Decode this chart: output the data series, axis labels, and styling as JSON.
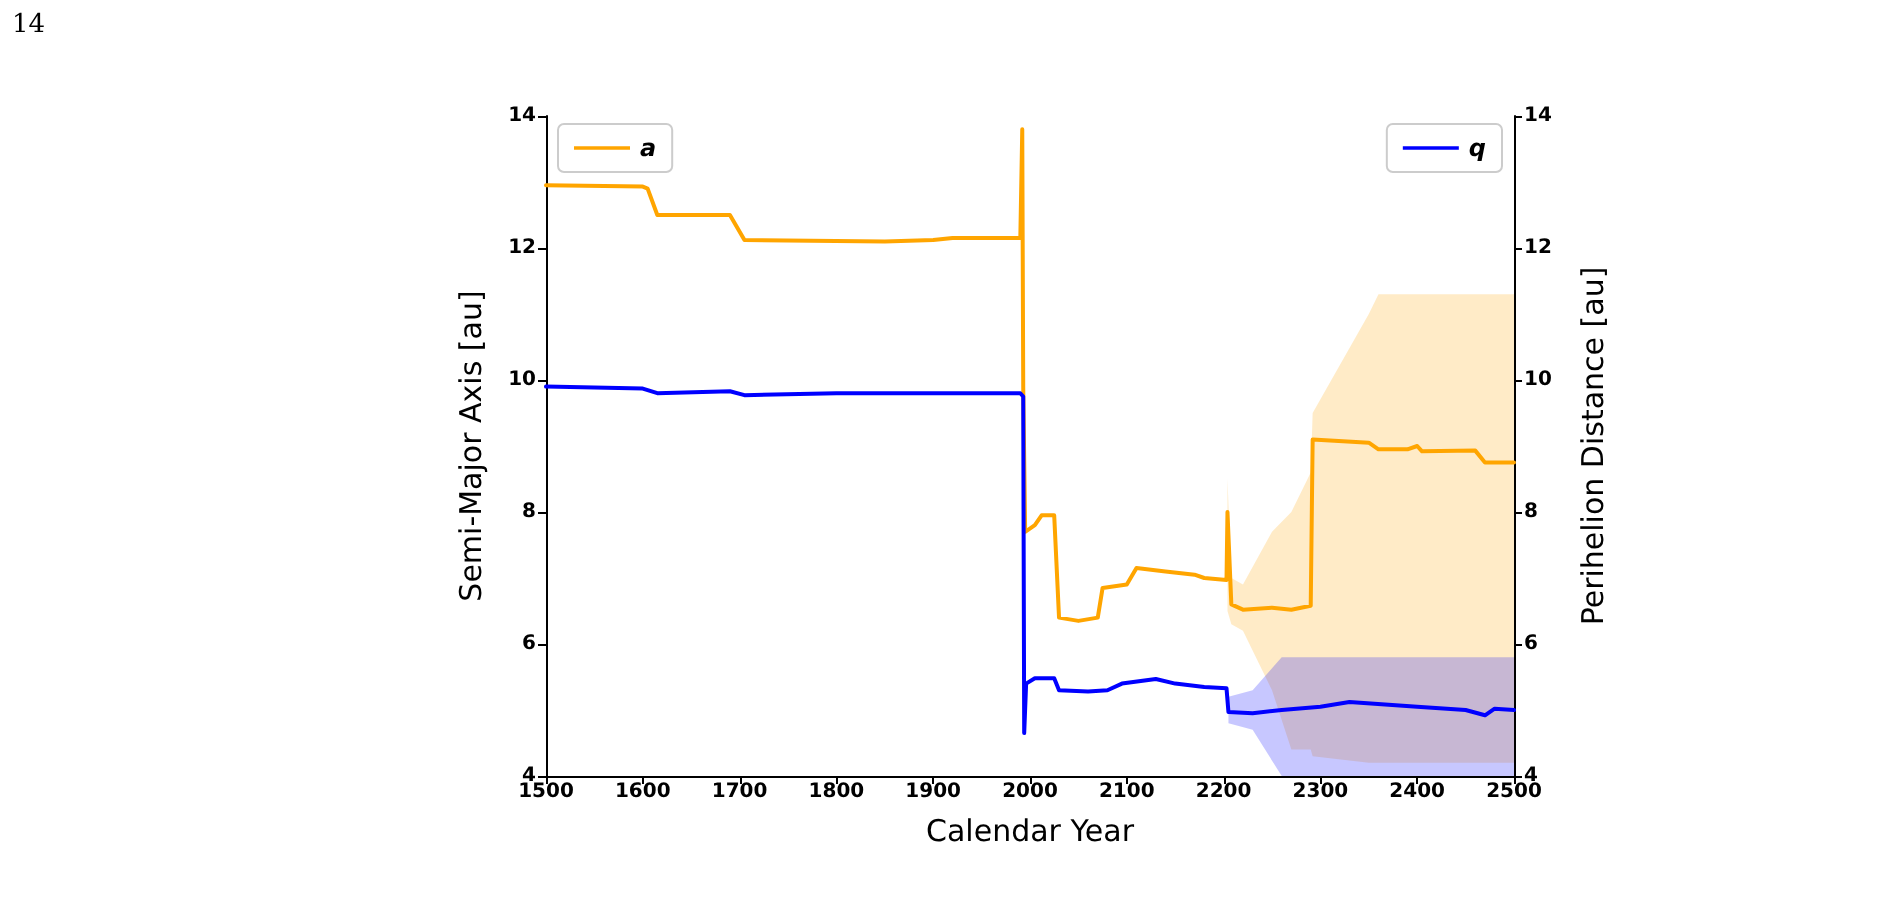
{
  "chart_data": {
    "type": "line",
    "xlabel": "Calendar Year",
    "ylabel": "Semi-Major Axis [au]",
    "y2label": "Perihelion Distance [au]",
    "annotations": [
      "14"
    ],
    "xlim": [
      1500,
      2500
    ],
    "xticks": [
      1500,
      1600,
      1700,
      1800,
      1900,
      2000,
      2100,
      2200,
      2300,
      2400,
      2500
    ],
    "ylim": [
      4,
      14
    ],
    "yticks": [
      4,
      6,
      8,
      10,
      12,
      14
    ],
    "y2lim": [
      4,
      14
    ],
    "y2ticks": [
      4,
      6,
      8,
      10,
      12,
      14
    ],
    "legend": "top left",
    "grid": false,
    "marker": "none",
    "line_style": "solid",
    "series": [
      {
        "name": "a",
        "color": "#ffa500",
        "x": [
          1500,
          1600,
          1605,
          1615,
          1690,
          1705,
          1850,
          1900,
          1920,
          1990,
          1992,
          1993,
          1995,
          2005,
          2012,
          2025,
          2030,
          2050,
          2070,
          2075,
          2100,
          2110,
          2140,
          2170,
          2180,
          2203,
          2204,
          2208,
          2220,
          2250,
          2270,
          2290,
          2292,
          2350,
          2360,
          2390,
          2400,
          2405,
          2460,
          2470,
          2500
        ],
        "values": [
          12.95,
          12.93,
          12.9,
          12.5,
          12.5,
          12.12,
          12.1,
          12.12,
          12.15,
          12.15,
          13.8,
          9.9,
          7.7,
          7.8,
          7.95,
          7.95,
          6.4,
          6.35,
          6.4,
          6.85,
          6.9,
          7.15,
          7.1,
          7.05,
          7.0,
          6.97,
          8.0,
          6.6,
          6.52,
          6.55,
          6.52,
          6.58,
          9.1,
          9.05,
          8.95,
          8.95,
          9.0,
          8.92,
          8.93,
          8.75,
          8.75
        ],
        "lower": [
          null,
          null,
          null,
          null,
          null,
          null,
          null,
          null,
          null,
          null,
          null,
          null,
          null,
          null,
          null,
          null,
          null,
          null,
          null,
          null,
          null,
          null,
          null,
          null,
          null,
          null,
          6.5,
          6.3,
          6.2,
          5.3,
          4.4,
          4.4,
          4.3,
          4.2,
          4.2,
          4.2,
          4.2,
          4.2,
          4.2,
          4.2,
          4.2
        ],
        "upper": [
          null,
          null,
          null,
          null,
          null,
          null,
          null,
          null,
          null,
          null,
          null,
          null,
          null,
          null,
          null,
          null,
          null,
          null,
          null,
          null,
          null,
          null,
          null,
          null,
          null,
          null,
          8.5,
          7.0,
          6.9,
          7.7,
          8.0,
          8.6,
          9.5,
          11.0,
          11.3,
          11.3,
          11.3,
          11.3,
          11.3,
          11.3,
          11.3
        ]
      },
      {
        "name": "q",
        "color": "#0000ff",
        "axis": "y2",
        "x": [
          1500,
          1600,
          1615,
          1690,
          1705,
          1800,
          1990,
          1993,
          1994,
          1996,
          2005,
          2025,
          2030,
          2060,
          2080,
          2095,
          2130,
          2150,
          2180,
          2203,
          2205,
          2230,
          2260,
          2300,
          2330,
          2400,
          2450,
          2470,
          2480,
          2500
        ],
        "values": [
          9.9,
          9.87,
          9.8,
          9.83,
          9.77,
          9.8,
          9.8,
          9.75,
          4.65,
          5.4,
          5.48,
          5.48,
          5.3,
          5.28,
          5.3,
          5.4,
          5.47,
          5.4,
          5.35,
          5.33,
          4.97,
          4.95,
          5.0,
          5.05,
          5.12,
          5.05,
          5.0,
          4.92,
          5.02,
          5.0
        ],
        "lower": [
          null,
          null,
          null,
          null,
          null,
          null,
          null,
          null,
          null,
          null,
          null,
          null,
          null,
          null,
          null,
          null,
          null,
          null,
          null,
          null,
          4.8,
          4.7,
          4.0,
          4.0,
          4.0,
          4.0,
          4.0,
          4.0,
          4.0,
          4.0
        ],
        "upper": [
          null,
          null,
          null,
          null,
          null,
          null,
          null,
          null,
          null,
          null,
          null,
          null,
          null,
          null,
          null,
          null,
          null,
          null,
          null,
          null,
          5.2,
          5.3,
          5.8,
          5.8,
          5.8,
          5.8,
          5.8,
          5.8,
          5.8,
          5.8
        ]
      }
    ]
  }
}
